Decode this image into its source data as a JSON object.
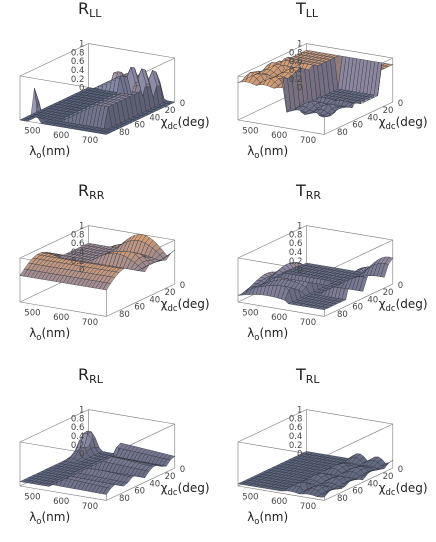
{
  "colors": {
    "surface_low": "#646e88",
    "surface_mid": "#9a93ae",
    "surface_high": "#f4b27c",
    "mesh": "#2a2f3a",
    "box": "#777777"
  },
  "chart_data": [
    {
      "id": "R_LL",
      "type": "surface3d",
      "title": {
        "main": "R",
        "sub": "LL"
      },
      "xlabel": {
        "main": "λ",
        "sub": "o",
        "unit": "(nm)"
      },
      "ylabel": {
        "main": "χ",
        "sub": "dc",
        "unit": "(deg)"
      },
      "xlim": [
        450,
        750
      ],
      "ylim": [
        0,
        90
      ],
      "zlim": [
        0,
        1
      ],
      "x_ticks": [
        "500",
        "600",
        "700"
      ],
      "y_ticks": [
        "0",
        "20",
        "40",
        "60",
        "80"
      ],
      "z_ticks": [
        "0",
        "0.2",
        "0.4",
        "0.6",
        "0.8",
        "1"
      ],
      "features": [
        {
          "kind": "spike",
          "x": 500,
          "y": 88,
          "height": 1.0,
          "width_x": 9,
          "width_y": 4
        },
        {
          "kind": "plateau",
          "x_range": [
            575,
            720
          ],
          "y_range": [
            2,
            75
          ],
          "height": 0.45
        },
        {
          "kind": "ripple",
          "x_range": [
            600,
            720
          ],
          "y_range": [
            0,
            30
          ],
          "amplitude": 0.35,
          "freq": 0.5
        }
      ]
    },
    {
      "id": "T_LL",
      "type": "surface3d",
      "title": {
        "main": "T",
        "sub": "LL"
      },
      "xlabel": {
        "main": "λ",
        "sub": "o",
        "unit": "(nm)"
      },
      "ylabel": {
        "main": "χ",
        "sub": "dc",
        "unit": "(deg)"
      },
      "xlim": [
        450,
        750
      ],
      "ylim": [
        0,
        90
      ],
      "zlim": [
        0,
        1
      ],
      "x_ticks": [
        "500",
        "600",
        "700"
      ],
      "y_ticks": [
        "0",
        "20",
        "40",
        "60",
        "80"
      ],
      "z_ticks": [
        "0",
        "0.2",
        "0.4",
        "0.6",
        "0.8",
        "1"
      ],
      "features": [
        {
          "kind": "base",
          "height": 0.85
        },
        {
          "kind": "trough",
          "x_range": [
            575,
            720
          ],
          "y_range": [
            2,
            75
          ],
          "depth": 0.7
        },
        {
          "kind": "ripple",
          "x_range": [
            450,
            750
          ],
          "y_range": [
            30,
            90
          ],
          "amplitude": 0.25,
          "freq": 0.6
        }
      ]
    },
    {
      "id": "R_RR",
      "type": "surface3d",
      "title": {
        "main": "R",
        "sub": "RR"
      },
      "xlabel": {
        "main": "λ",
        "sub": "o",
        "unit": "(nm)"
      },
      "ylabel": {
        "main": "χ",
        "sub": "dc",
        "unit": "(deg)"
      },
      "xlim": [
        450,
        750
      ],
      "ylim": [
        0,
        90
      ],
      "zlim": [
        0,
        1
      ],
      "x_ticks": [
        "500",
        "600",
        "700"
      ],
      "y_ticks": [
        "0",
        "20",
        "40",
        "60",
        "80"
      ],
      "z_ticks": [
        "0",
        "0.2",
        "0.4",
        "0.6",
        "0.8",
        "1"
      ],
      "features": [
        {
          "kind": "base",
          "height": 0.6
        },
        {
          "kind": "ridge",
          "x_range": [
            450,
            750
          ],
          "y_range": [
            40,
            90
          ],
          "height": 0.3
        },
        {
          "kind": "ripple",
          "x_range": [
            550,
            750
          ],
          "y_range": [
            0,
            60
          ],
          "amplitude": 0.4,
          "freq": 0.7
        }
      ]
    },
    {
      "id": "T_RR",
      "type": "surface3d",
      "title": {
        "main": "T",
        "sub": "RR"
      },
      "xlabel": {
        "main": "λ",
        "sub": "o",
        "unit": "(nm)"
      },
      "ylabel": {
        "main": "χ",
        "sub": "dc",
        "unit": "(deg)"
      },
      "xlim": [
        450,
        750
      ],
      "ylim": [
        0,
        90
      ],
      "zlim": [
        0,
        1
      ],
      "x_ticks": [
        "500",
        "600",
        "700"
      ],
      "y_ticks": [
        "0",
        "20",
        "40",
        "60",
        "80"
      ],
      "z_ticks": [
        "0",
        "0.2",
        "0.4",
        "0.6",
        "0.8",
        "1"
      ],
      "features": [
        {
          "kind": "base",
          "height": 0.15
        },
        {
          "kind": "ripple",
          "x_range": [
            450,
            620
          ],
          "y_range": [
            30,
            90
          ],
          "amplitude": 0.55,
          "freq": 0.8
        },
        {
          "kind": "ripple",
          "x_range": [
            650,
            750
          ],
          "y_range": [
            0,
            60
          ],
          "amplitude": 0.45,
          "freq": 0.7
        }
      ]
    },
    {
      "id": "R_RL",
      "type": "surface3d",
      "title": {
        "main": "R",
        "sub": "RL"
      },
      "xlabel": {
        "main": "λ",
        "sub": "o",
        "unit": "(nm)"
      },
      "ylabel": {
        "main": "χ",
        "sub": "dc",
        "unit": "(deg)"
      },
      "xlim": [
        450,
        750
      ],
      "ylim": [
        0,
        90
      ],
      "zlim": [
        0,
        1
      ],
      "x_ticks": [
        "500",
        "600",
        "700"
      ],
      "y_ticks": [
        "0",
        "20",
        "40",
        "60",
        "80"
      ],
      "z_ticks": [
        "0",
        "0.2",
        "0.4",
        "0.6",
        "0.8",
        "1"
      ],
      "features": [
        {
          "kind": "base",
          "height": 0.1
        },
        {
          "kind": "ripple",
          "x_range": [
            560,
            750
          ],
          "y_range": [
            0,
            90
          ],
          "amplitude": 0.45,
          "freq": 0.75
        },
        {
          "kind": "bump",
          "x": 470,
          "y": 10,
          "height": 0.6,
          "width_x": 15,
          "width_y": 12
        }
      ]
    },
    {
      "id": "T_RL",
      "type": "surface3d",
      "title": {
        "main": "T",
        "sub": "RL"
      },
      "xlabel": {
        "main": "λ",
        "sub": "o",
        "unit": "(nm)"
      },
      "ylabel": {
        "main": "χ",
        "sub": "dc",
        "unit": "(deg)"
      },
      "xlim": [
        450,
        750
      ],
      "ylim": [
        0,
        90
      ],
      "zlim": [
        0,
        1
      ],
      "x_ticks": [
        "500",
        "600",
        "700"
      ],
      "y_ticks": [
        "0",
        "20",
        "40",
        "60",
        "80"
      ],
      "z_ticks": [
        "0",
        "0.2",
        "0.4",
        "0.6",
        "0.8",
        "1"
      ],
      "features": [
        {
          "kind": "base",
          "height": 0.05
        },
        {
          "kind": "ripple",
          "x_range": [
            600,
            750
          ],
          "y_range": [
            0,
            90
          ],
          "amplitude": 0.15,
          "freq": 0.9
        },
        {
          "kind": "spike",
          "x": 650,
          "y": 80,
          "height": 0.35,
          "width_x": 6,
          "width_y": 3
        }
      ]
    }
  ]
}
